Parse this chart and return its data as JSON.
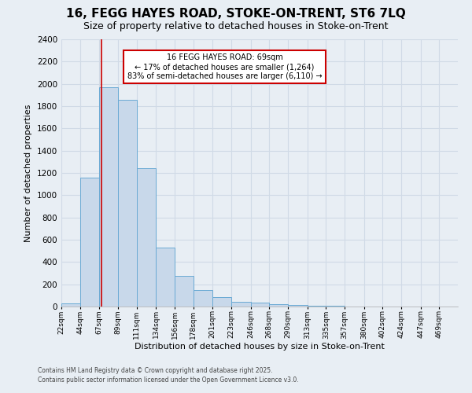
{
  "title1": "16, FEGG HAYES ROAD, STOKE-ON-TRENT, ST6 7LQ",
  "title2": "Size of property relative to detached houses in Stoke-on-Trent",
  "xlabel": "Distribution of detached houses by size in Stoke-on-Trent",
  "ylabel": "Number of detached properties",
  "bin_labels": [
    "22sqm",
    "44sqm",
    "67sqm",
    "89sqm",
    "111sqm",
    "134sqm",
    "156sqm",
    "178sqm",
    "201sqm",
    "223sqm",
    "246sqm",
    "268sqm",
    "290sqm",
    "313sqm",
    "335sqm",
    "357sqm",
    "380sqm",
    "402sqm",
    "424sqm",
    "447sqm",
    "469sqm"
  ],
  "bin_edges": [
    22,
    44,
    67,
    89,
    111,
    134,
    156,
    178,
    201,
    223,
    246,
    268,
    290,
    313,
    335,
    357,
    380,
    402,
    424,
    447,
    469,
    491
  ],
  "bar_heights": [
    25,
    1160,
    1970,
    1860,
    1240,
    530,
    275,
    150,
    85,
    45,
    35,
    20,
    15,
    7,
    5,
    3,
    2,
    1,
    1,
    0,
    0
  ],
  "bar_color": "#c8d8ea",
  "bar_edge_color": "#6aaad4",
  "bar_edge_width": 0.7,
  "red_line_x": 69,
  "annotation_title": "16 FEGG HAYES ROAD: 69sqm",
  "annotation_line1": "← 17% of detached houses are smaller (1,264)",
  "annotation_line2": "83% of semi-detached houses are larger (6,110) →",
  "annotation_box_facecolor": "#ffffff",
  "annotation_box_edgecolor": "#cc0000",
  "ylim": [
    0,
    2400
  ],
  "yticks": [
    0,
    200,
    400,
    600,
    800,
    1000,
    1200,
    1400,
    1600,
    1800,
    2000,
    2200,
    2400
  ],
  "background_color": "#e8eef4",
  "grid_color": "#d0dae6",
  "footer1": "Contains HM Land Registry data © Crown copyright and database right 2025.",
  "footer2": "Contains public sector information licensed under the Open Government Licence v3.0.",
  "title1_fontsize": 11,
  "title2_fontsize": 9
}
